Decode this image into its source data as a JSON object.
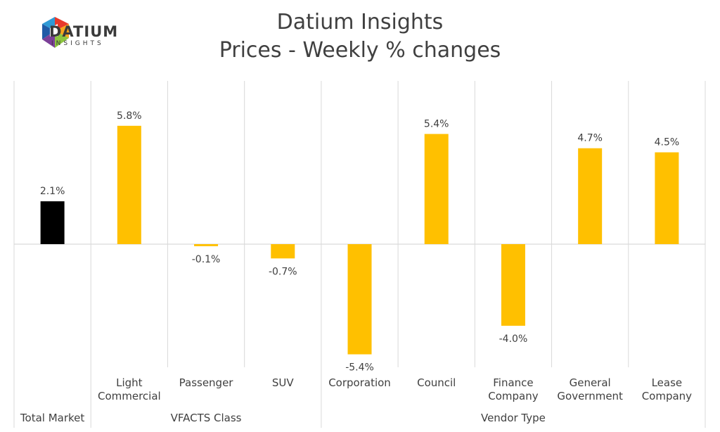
{
  "brand": {
    "name": "DATIUM",
    "tagline": "INSIGHTS",
    "colors": [
      "#e8392b",
      "#f7a51c",
      "#2f9ad6",
      "#1f5aa6",
      "#7b3f98",
      "#8dc63f"
    ]
  },
  "chart_data": {
    "type": "bar",
    "title": "Datium Insights",
    "subtitle": "Prices - Weekly % changes",
    "categories": [
      "Total Market",
      "Light Commercial",
      "Passenger",
      "SUV",
      "Corporation",
      "Council",
      "Finance Company",
      "General Government",
      "Lease Company"
    ],
    "category_lines": [
      [
        "Total Market"
      ],
      [
        "Light",
        "Commercial"
      ],
      [
        "Passenger"
      ],
      [
        "SUV"
      ],
      [
        "Corporation"
      ],
      [
        "Council"
      ],
      [
        "Finance",
        "Company"
      ],
      [
        "General",
        "Government"
      ],
      [
        "Lease",
        "Company"
      ]
    ],
    "values": [
      2.1,
      5.8,
      -0.1,
      -0.7,
      -5.4,
      5.4,
      -4.0,
      4.7,
      4.5
    ],
    "value_labels": [
      "2.1%",
      "5.8%",
      "-0.1%",
      "-0.7%",
      "-5.4%",
      "5.4%",
      "-4.0%",
      "4.7%",
      "4.5%"
    ],
    "groups": [
      {
        "label": "",
        "span": [
          0,
          0
        ]
      },
      {
        "label": "VFACTS Class",
        "span": [
          1,
          3
        ]
      },
      {
        "label": "Vendor Type",
        "span": [
          4,
          8
        ]
      }
    ],
    "bar_colors": [
      "#000000",
      "#ffc000",
      "#ffc000",
      "#ffc000",
      "#ffc000",
      "#ffc000",
      "#ffc000",
      "#ffc000",
      "#ffc000"
    ],
    "ylim": [
      -6.5,
      8.0
    ],
    "y_axis_visible": false,
    "grid": "vertical category separators",
    "legend": "none"
  }
}
